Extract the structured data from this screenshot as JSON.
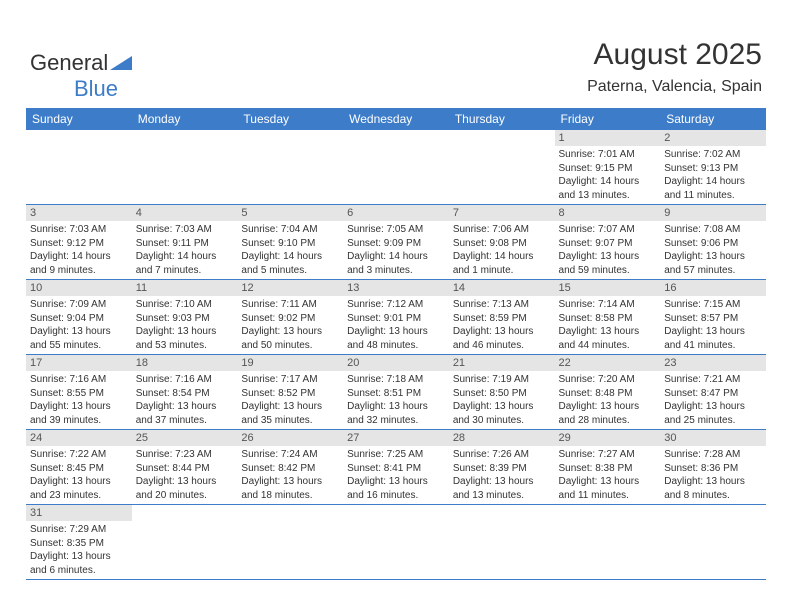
{
  "brand": {
    "part1": "General",
    "part2": "Blue"
  },
  "header": {
    "title": "August 2025",
    "location": "Paterna, Valencia, Spain"
  },
  "colors": {
    "accent": "#3d7cc9",
    "daynum_bg": "#e5e5e5",
    "text": "#333333",
    "white": "#ffffff",
    "divider": "#3d7cc9"
  },
  "dayNames": [
    "Sunday",
    "Monday",
    "Tuesday",
    "Wednesday",
    "Thursday",
    "Friday",
    "Saturday"
  ],
  "weeks": [
    [
      null,
      null,
      null,
      null,
      null,
      {
        "n": "1",
        "sr": "Sunrise: 7:01 AM",
        "ss": "Sunset: 9:15 PM",
        "dl": "Daylight: 14 hours and 13 minutes."
      },
      {
        "n": "2",
        "sr": "Sunrise: 7:02 AM",
        "ss": "Sunset: 9:13 PM",
        "dl": "Daylight: 14 hours and 11 minutes."
      }
    ],
    [
      {
        "n": "3",
        "sr": "Sunrise: 7:03 AM",
        "ss": "Sunset: 9:12 PM",
        "dl": "Daylight: 14 hours and 9 minutes."
      },
      {
        "n": "4",
        "sr": "Sunrise: 7:03 AM",
        "ss": "Sunset: 9:11 PM",
        "dl": "Daylight: 14 hours and 7 minutes."
      },
      {
        "n": "5",
        "sr": "Sunrise: 7:04 AM",
        "ss": "Sunset: 9:10 PM",
        "dl": "Daylight: 14 hours and 5 minutes."
      },
      {
        "n": "6",
        "sr": "Sunrise: 7:05 AM",
        "ss": "Sunset: 9:09 PM",
        "dl": "Daylight: 14 hours and 3 minutes."
      },
      {
        "n": "7",
        "sr": "Sunrise: 7:06 AM",
        "ss": "Sunset: 9:08 PM",
        "dl": "Daylight: 14 hours and 1 minute."
      },
      {
        "n": "8",
        "sr": "Sunrise: 7:07 AM",
        "ss": "Sunset: 9:07 PM",
        "dl": "Daylight: 13 hours and 59 minutes."
      },
      {
        "n": "9",
        "sr": "Sunrise: 7:08 AM",
        "ss": "Sunset: 9:06 PM",
        "dl": "Daylight: 13 hours and 57 minutes."
      }
    ],
    [
      {
        "n": "10",
        "sr": "Sunrise: 7:09 AM",
        "ss": "Sunset: 9:04 PM",
        "dl": "Daylight: 13 hours and 55 minutes."
      },
      {
        "n": "11",
        "sr": "Sunrise: 7:10 AM",
        "ss": "Sunset: 9:03 PM",
        "dl": "Daylight: 13 hours and 53 minutes."
      },
      {
        "n": "12",
        "sr": "Sunrise: 7:11 AM",
        "ss": "Sunset: 9:02 PM",
        "dl": "Daylight: 13 hours and 50 minutes."
      },
      {
        "n": "13",
        "sr": "Sunrise: 7:12 AM",
        "ss": "Sunset: 9:01 PM",
        "dl": "Daylight: 13 hours and 48 minutes."
      },
      {
        "n": "14",
        "sr": "Sunrise: 7:13 AM",
        "ss": "Sunset: 8:59 PM",
        "dl": "Daylight: 13 hours and 46 minutes."
      },
      {
        "n": "15",
        "sr": "Sunrise: 7:14 AM",
        "ss": "Sunset: 8:58 PM",
        "dl": "Daylight: 13 hours and 44 minutes."
      },
      {
        "n": "16",
        "sr": "Sunrise: 7:15 AM",
        "ss": "Sunset: 8:57 PM",
        "dl": "Daylight: 13 hours and 41 minutes."
      }
    ],
    [
      {
        "n": "17",
        "sr": "Sunrise: 7:16 AM",
        "ss": "Sunset: 8:55 PM",
        "dl": "Daylight: 13 hours and 39 minutes."
      },
      {
        "n": "18",
        "sr": "Sunrise: 7:16 AM",
        "ss": "Sunset: 8:54 PM",
        "dl": "Daylight: 13 hours and 37 minutes."
      },
      {
        "n": "19",
        "sr": "Sunrise: 7:17 AM",
        "ss": "Sunset: 8:52 PM",
        "dl": "Daylight: 13 hours and 35 minutes."
      },
      {
        "n": "20",
        "sr": "Sunrise: 7:18 AM",
        "ss": "Sunset: 8:51 PM",
        "dl": "Daylight: 13 hours and 32 minutes."
      },
      {
        "n": "21",
        "sr": "Sunrise: 7:19 AM",
        "ss": "Sunset: 8:50 PM",
        "dl": "Daylight: 13 hours and 30 minutes."
      },
      {
        "n": "22",
        "sr": "Sunrise: 7:20 AM",
        "ss": "Sunset: 8:48 PM",
        "dl": "Daylight: 13 hours and 28 minutes."
      },
      {
        "n": "23",
        "sr": "Sunrise: 7:21 AM",
        "ss": "Sunset: 8:47 PM",
        "dl": "Daylight: 13 hours and 25 minutes."
      }
    ],
    [
      {
        "n": "24",
        "sr": "Sunrise: 7:22 AM",
        "ss": "Sunset: 8:45 PM",
        "dl": "Daylight: 13 hours and 23 minutes."
      },
      {
        "n": "25",
        "sr": "Sunrise: 7:23 AM",
        "ss": "Sunset: 8:44 PM",
        "dl": "Daylight: 13 hours and 20 minutes."
      },
      {
        "n": "26",
        "sr": "Sunrise: 7:24 AM",
        "ss": "Sunset: 8:42 PM",
        "dl": "Daylight: 13 hours and 18 minutes."
      },
      {
        "n": "27",
        "sr": "Sunrise: 7:25 AM",
        "ss": "Sunset: 8:41 PM",
        "dl": "Daylight: 13 hours and 16 minutes."
      },
      {
        "n": "28",
        "sr": "Sunrise: 7:26 AM",
        "ss": "Sunset: 8:39 PM",
        "dl": "Daylight: 13 hours and 13 minutes."
      },
      {
        "n": "29",
        "sr": "Sunrise: 7:27 AM",
        "ss": "Sunset: 8:38 PM",
        "dl": "Daylight: 13 hours and 11 minutes."
      },
      {
        "n": "30",
        "sr": "Sunrise: 7:28 AM",
        "ss": "Sunset: 8:36 PM",
        "dl": "Daylight: 13 hours and 8 minutes."
      }
    ],
    [
      {
        "n": "31",
        "sr": "Sunrise: 7:29 AM",
        "ss": "Sunset: 8:35 PM",
        "dl": "Daylight: 13 hours and 6 minutes."
      },
      null,
      null,
      null,
      null,
      null,
      null
    ]
  ]
}
